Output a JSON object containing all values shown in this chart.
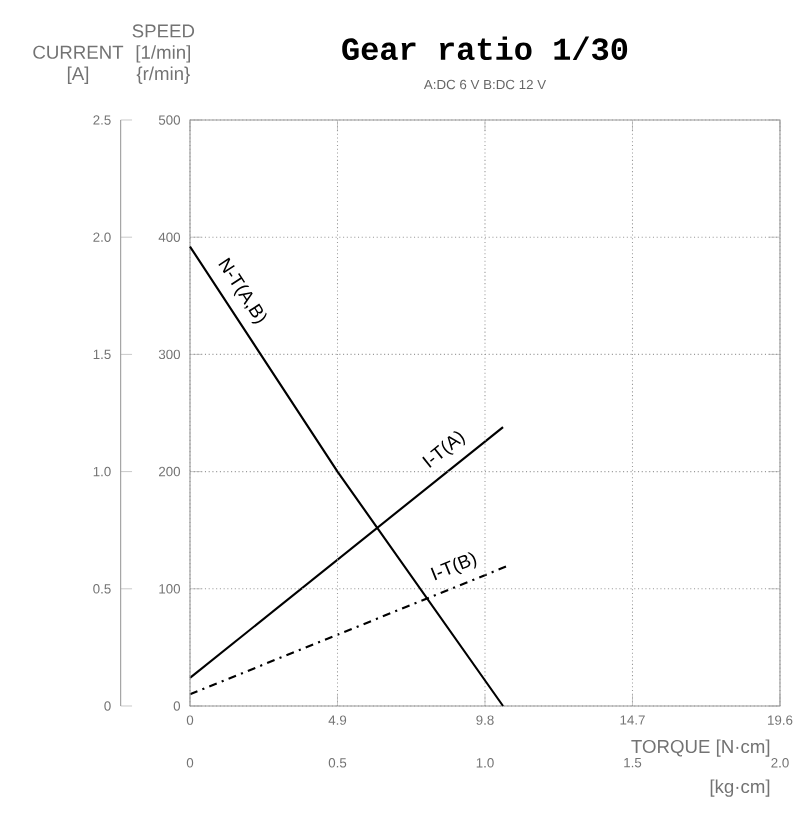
{
  "chart_data": {
    "type": "line",
    "title": "Gear ratio 1/30",
    "subtitle": "A:DC 6 V B:DC 12 V",
    "xlabel": "TORQUE [N·cm]",
    "x2label": "[kg·cm]",
    "ylabel": "SPEED [1/min] {r/min}",
    "y2label": "CURRENT [A]",
    "xlim": [
      0,
      19.6
    ],
    "xticks": [
      0,
      4.9,
      9.8,
      14.7,
      19.6
    ],
    "x2lim": [
      0,
      2.0
    ],
    "x2ticks": [
      0,
      0.5,
      {
        "value": 1.0,
        "label": "1.0"
      },
      1.5,
      {
        "value": 2.0,
        "label": "2.0"
      }
    ],
    "ylim": [
      0,
      500
    ],
    "yticks": [
      0,
      100,
      200,
      300,
      400,
      500
    ],
    "y2lim": [
      0,
      2.5
    ],
    "y2ticks": [
      0,
      0.5,
      {
        "value": 1.0,
        "label": "1.0"
      },
      1.5,
      {
        "value": 2.0,
        "label": "2.0"
      },
      2.5
    ],
    "grid": true,
    "marker": "none",
    "series": [
      {
        "name": "N-T(A,B)",
        "color": "#000000",
        "line_style": "solid",
        "axis": "y",
        "x": [
          0,
          4.9,
          10.4
        ],
        "values": [
          392,
          200,
          0
        ]
      },
      {
        "name": "I-T(A)",
        "color": "#000000",
        "line_style": "solid",
        "axis": "y2",
        "x": [
          0,
          10.4
        ],
        "values": [
          0.12,
          1.19
        ]
      },
      {
        "name": "I-T(B)",
        "color": "#000000",
        "line_style": "dashed",
        "axis": "y2",
        "x": [
          0,
          10.6
        ],
        "values": [
          0.05,
          0.6
        ]
      }
    ]
  }
}
